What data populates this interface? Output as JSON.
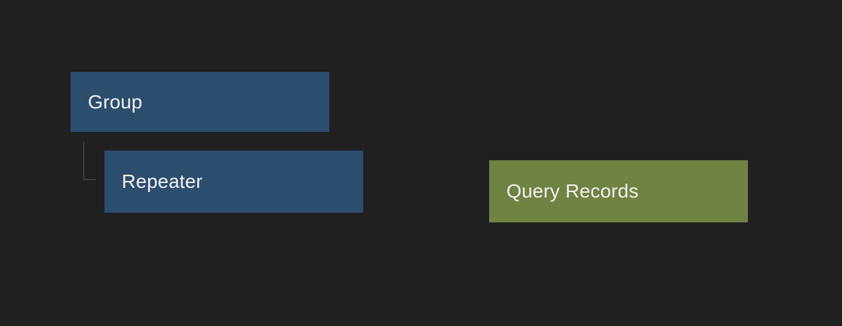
{
  "canvas": {
    "background_color": "#202020"
  },
  "nodes": [
    {
      "id": "group",
      "label": "Group",
      "fill_color": "#2b4d6e",
      "text_color": "#f2f2f2"
    },
    {
      "id": "repeater",
      "label": "Repeater",
      "fill_color": "#2b4d6e",
      "text_color": "#f2f2f2"
    },
    {
      "id": "query-records",
      "label": "Query Records",
      "fill_color": "#6f8342",
      "text_color": "#f2f2f2"
    }
  ],
  "connector": {
    "from": "Group",
    "to": "Repeater",
    "line_color": "#3d3d3d",
    "shape": "elbow"
  }
}
